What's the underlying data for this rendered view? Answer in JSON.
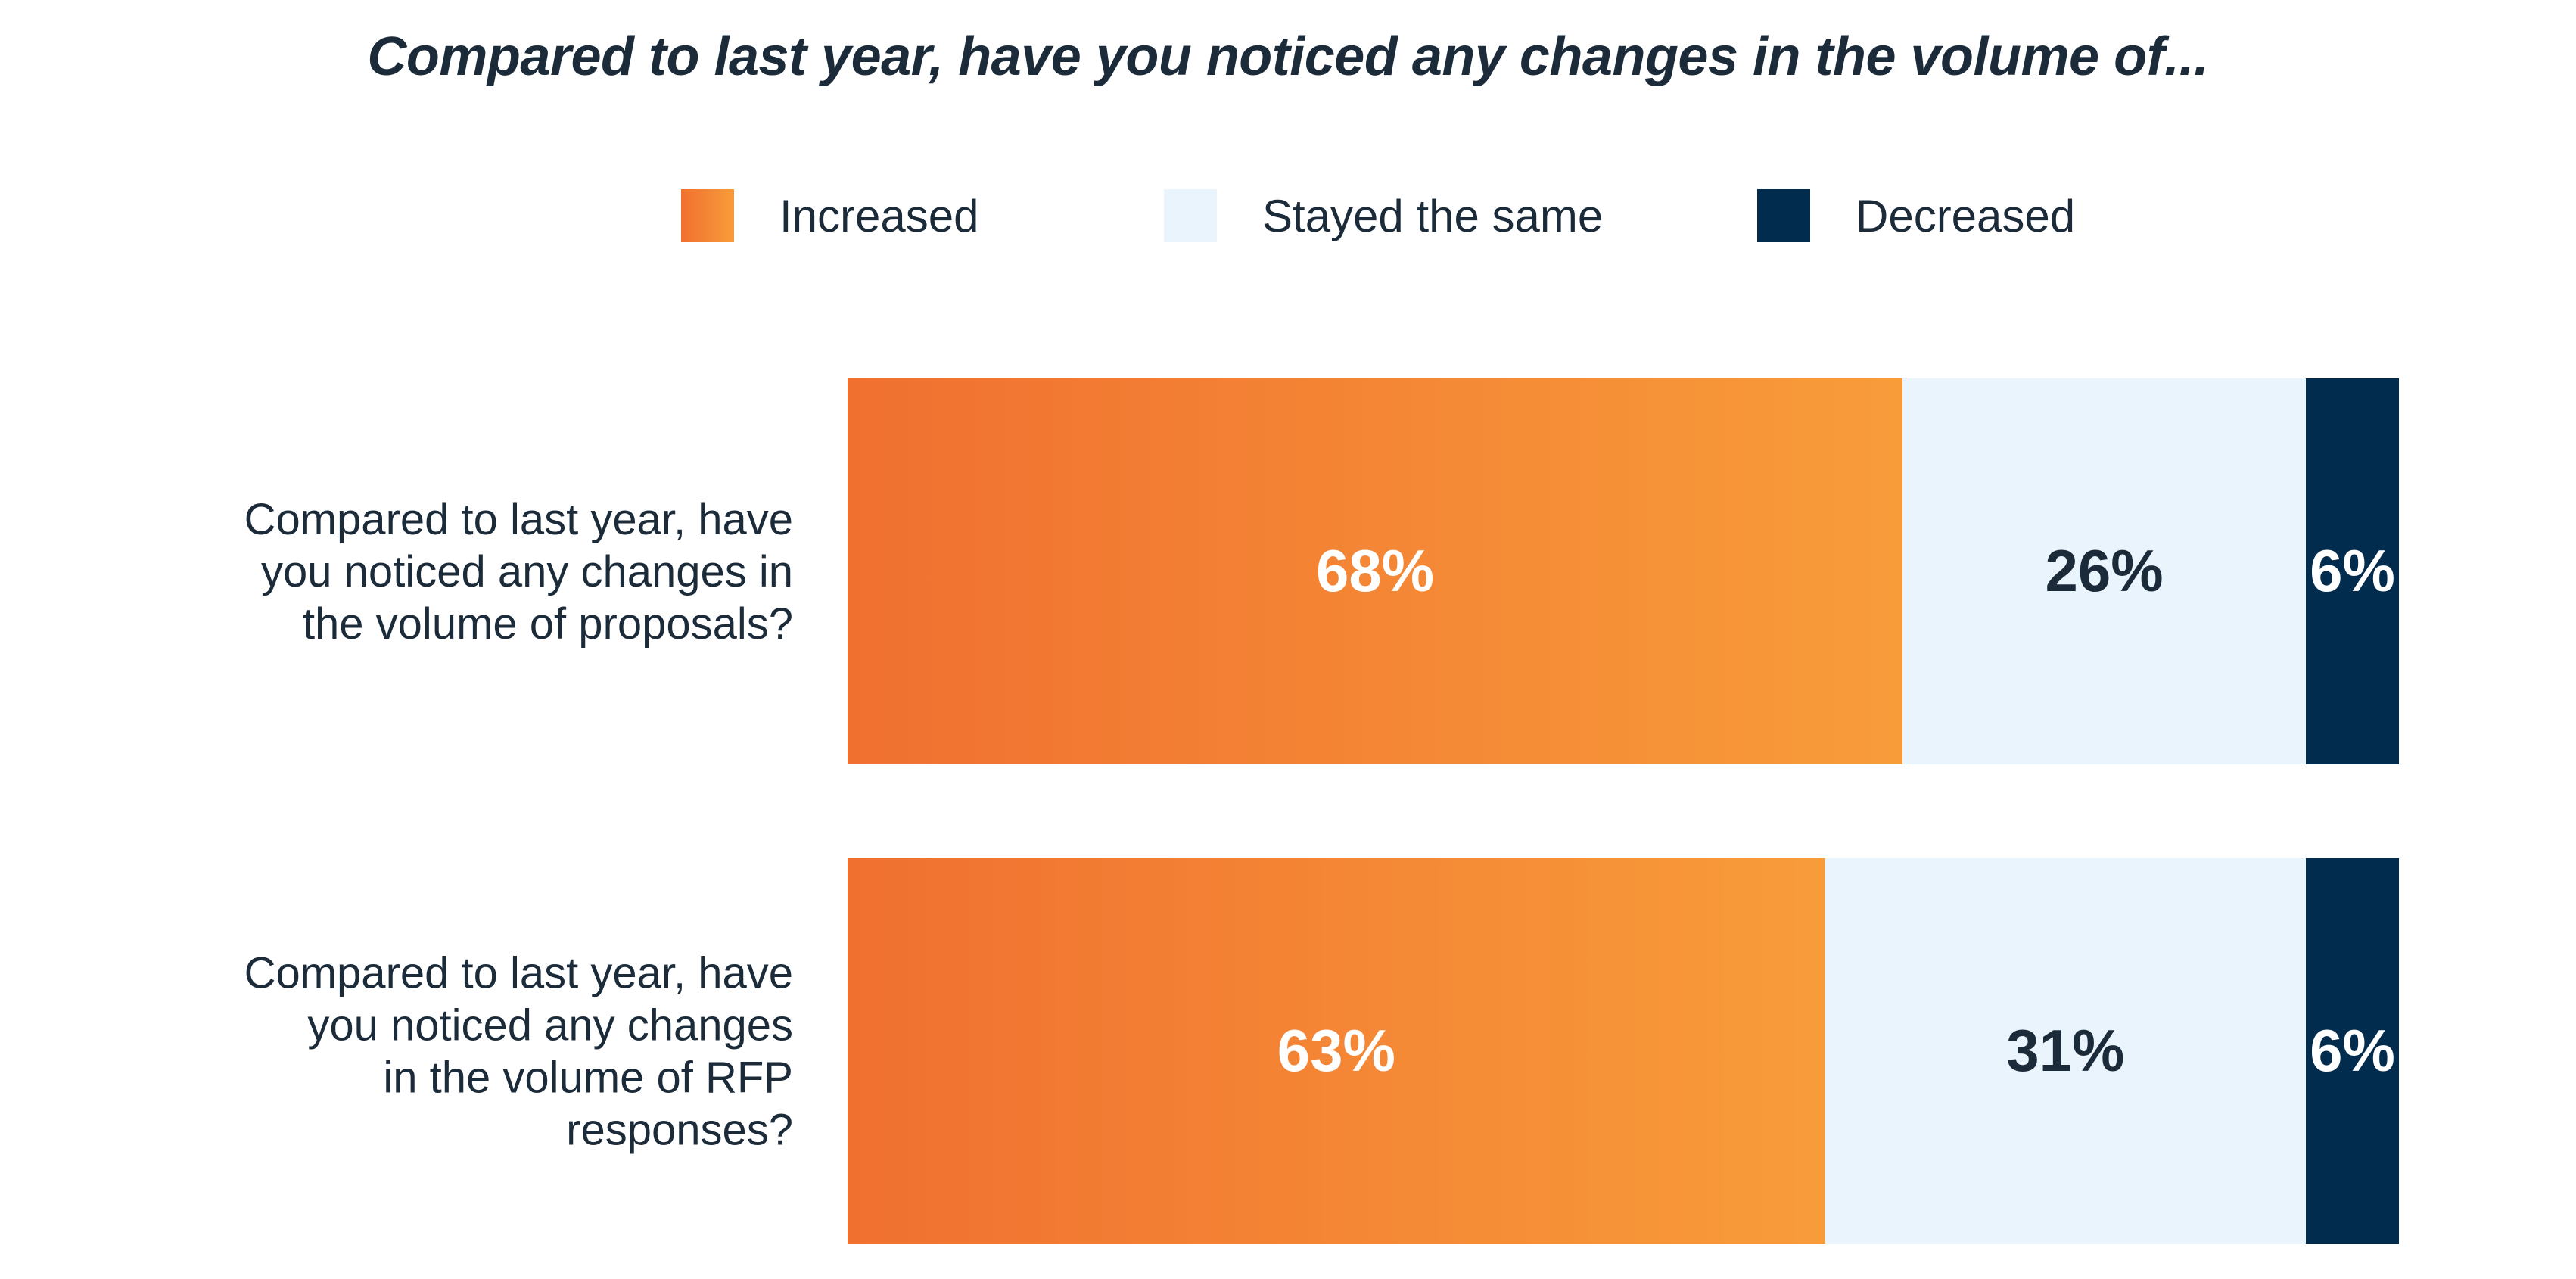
{
  "chart_data": {
    "type": "bar",
    "orientation": "horizontal",
    "stacked": true,
    "title": "Compared to last year, have you noticed any changes in the volume of...",
    "categories": [
      "Compared to last year, have you noticed any changes in the volume of proposals?",
      "Compared to last year, have you noticed any changes in the volume of RFP responses?"
    ],
    "category_lines": [
      [
        "Compared to last year, have",
        "you noticed any changes in",
        "the volume of proposals?"
      ],
      [
        "Compared to last year, have",
        "you noticed any changes",
        "in the volume of RFP",
        "responses?"
      ]
    ],
    "series": [
      {
        "name": "Increased",
        "values": [
          68,
          63
        ],
        "labels": [
          "68%",
          "63%"
        ],
        "color_start": "#F07030",
        "color_end": "#F89C3A",
        "label_color": "#ffffff"
      },
      {
        "name": "Stayed the same",
        "values": [
          26,
          31
        ],
        "labels": [
          "26%",
          "31%"
        ],
        "color": "#EAF4FD",
        "label_color": "#1c2b3a"
      },
      {
        "name": "Decreased",
        "values": [
          6,
          6
        ],
        "labels": [
          "6%",
          "6%"
        ],
        "color": "#022C4D",
        "label_color": "#ffffff"
      }
    ],
    "legend_position": "top",
    "grid": false
  }
}
